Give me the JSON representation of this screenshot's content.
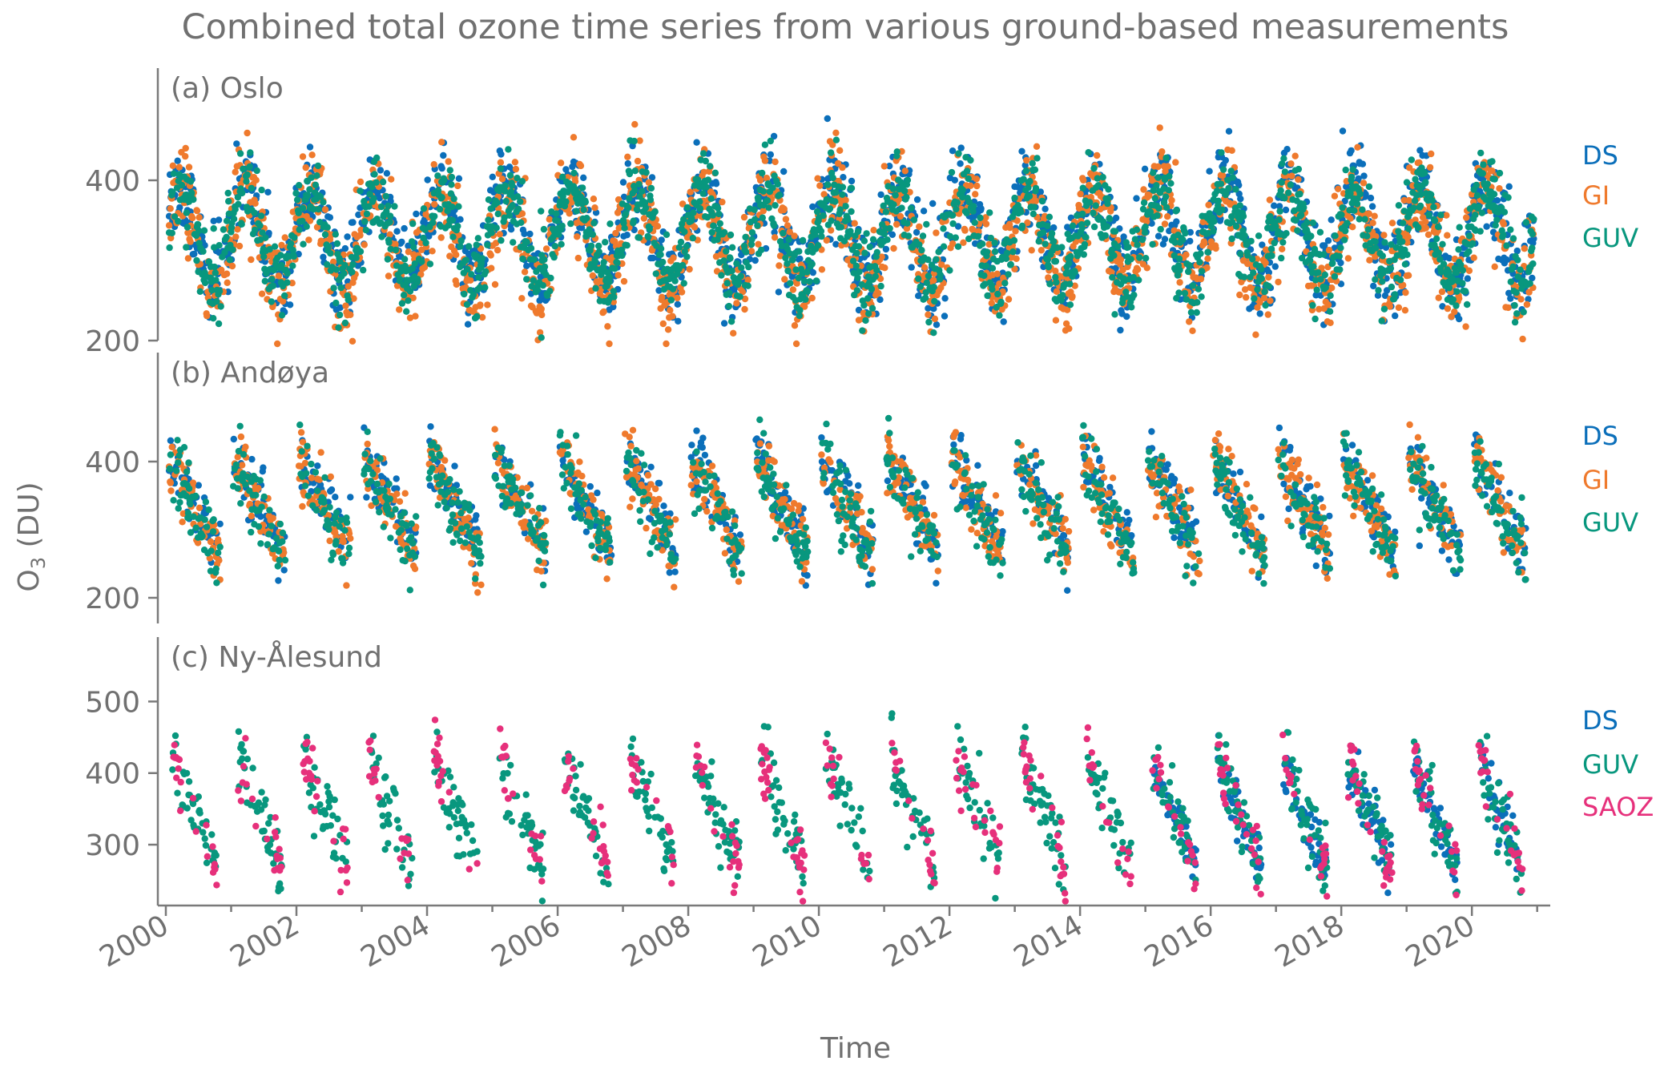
{
  "chart_data": {
    "type": "scatter",
    "title": "Combined total ozone time series from various ground-based measurements",
    "xlabel": "Time",
    "ylabel_main": "O",
    "ylabel_sub": "3",
    "ylabel_unit": " (DU)",
    "xlim": [
      2000,
      2021.2
    ],
    "x_ticks": [
      2000,
      2002,
      2004,
      2006,
      2008,
      2010,
      2012,
      2014,
      2016,
      2018,
      2020
    ],
    "x_tick_labels": [
      "2000",
      "2002",
      "2004",
      "2006",
      "2008",
      "2010",
      "2012",
      "2014",
      "2016",
      "2018",
      "2020"
    ],
    "colors": {
      "DS": "#0b6fba",
      "GI": "#ef7a2d",
      "GUV": "#08977e",
      "SAOZ": "#e6307b"
    },
    "panels": [
      {
        "label": "(a) Oslo",
        "ylim": [
          190,
          540
        ],
        "y_ticks": [
          200,
          400
        ],
        "series": [
          {
            "name": "DS",
            "mean": 335,
            "amp": 60,
            "spread": 28,
            "season": "full"
          },
          {
            "name": "GI",
            "mean": 325,
            "amp": 62,
            "spread": 30,
            "season": "full"
          },
          {
            "name": "GUV",
            "mean": 330,
            "amp": 55,
            "spread": 26,
            "season": "full"
          }
        ]
      },
      {
        "label": "(b) Andøya",
        "ylim": [
          160,
          560
        ],
        "y_ticks": [
          200,
          400
        ],
        "series": [
          {
            "name": "DS",
            "mean": 340,
            "amp": 80,
            "spread": 22,
            "season": "polar"
          },
          {
            "name": "GI",
            "mean": 335,
            "amp": 82,
            "spread": 24,
            "season": "polar"
          },
          {
            "name": "GUV",
            "mean": 330,
            "amp": 80,
            "spread": 26,
            "season": "polar"
          }
        ]
      },
      {
        "label": "(c) Ny-Ålesund",
        "ylim": [
          215,
          590
        ],
        "y_ticks": [
          300,
          400,
          500
        ],
        "series": [
          {
            "name": "DS",
            "mean": 340,
            "amp": 70,
            "spread": 20,
            "season": "arctic",
            "from": 2014.8
          },
          {
            "name": "GUV",
            "mean": 345,
            "amp": 75,
            "spread": 24,
            "season": "arctic"
          },
          {
            "name": "SAOZ",
            "mean": 345,
            "amp": 80,
            "spread": 22,
            "season": "arctic-edges"
          }
        ]
      }
    ]
  }
}
